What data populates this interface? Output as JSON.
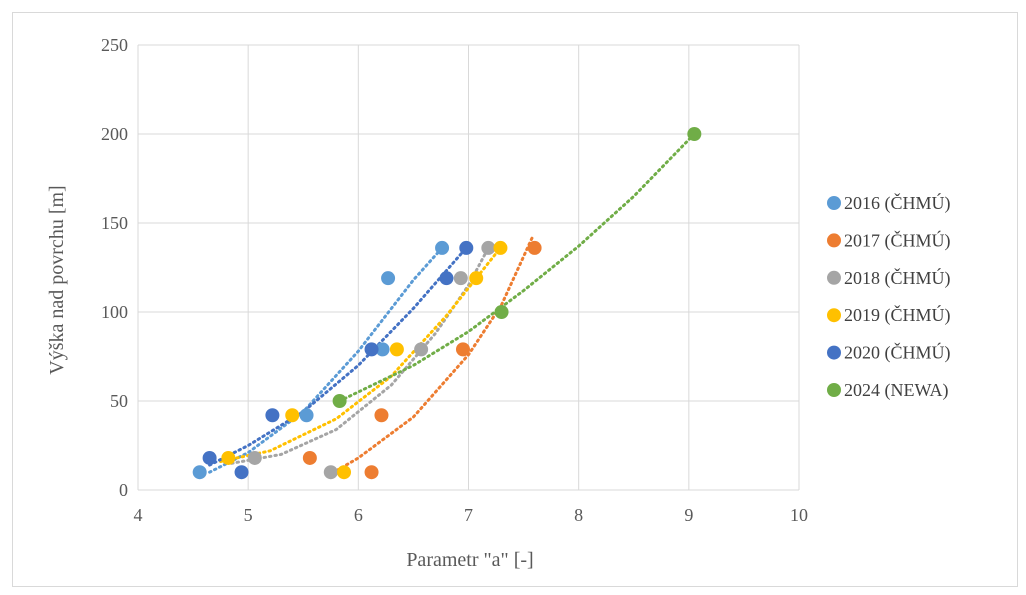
{
  "chart_data": {
    "type": "scatter",
    "xlabel": "Parametr \"a\" [-]",
    "ylabel": "Výška nad povrchu [m]",
    "xlim": [
      4,
      10
    ],
    "ylim": [
      0,
      250
    ],
    "xticks": [
      4,
      5,
      6,
      7,
      8,
      9,
      10
    ],
    "yticks": [
      0,
      50,
      100,
      150,
      200,
      250
    ],
    "grid": true,
    "legend_position": "right",
    "trendlines": "dotted polynomial",
    "series": [
      {
        "name": "2016 (ČHMÚ)",
        "color": "#5b9bd5",
        "points": [
          [
            4.56,
            10
          ],
          [
            5.53,
            42
          ],
          [
            6.22,
            79
          ],
          [
            6.27,
            119
          ],
          [
            6.76,
            136
          ]
        ],
        "trend": [
          [
            4.65,
            10
          ],
          [
            5.0,
            21
          ],
          [
            5.5,
            44
          ],
          [
            6.0,
            78
          ],
          [
            6.5,
            118
          ],
          [
            6.76,
            136
          ]
        ]
      },
      {
        "name": "2017 (ČHMÚ)",
        "color": "#ed7d31",
        "points": [
          [
            6.12,
            10
          ],
          [
            5.56,
            18
          ],
          [
            6.21,
            42
          ],
          [
            6.95,
            79
          ],
          [
            7.6,
            136
          ]
        ],
        "trend": [
          [
            5.72,
            8
          ],
          [
            6.0,
            18
          ],
          [
            6.5,
            41
          ],
          [
            7.0,
            76
          ],
          [
            7.3,
            104
          ],
          [
            7.58,
            142
          ]
        ]
      },
      {
        "name": "2018 (ČHMÚ)",
        "color": "#a5a5a5",
        "points": [
          [
            5.75,
            10
          ],
          [
            5.06,
            18
          ],
          [
            6.57,
            79
          ],
          [
            6.93,
            119
          ],
          [
            7.18,
            136
          ]
        ],
        "trend": [
          [
            4.85,
            15
          ],
          [
            5.3,
            20
          ],
          [
            5.8,
            34
          ],
          [
            6.3,
            59
          ],
          [
            6.7,
            88
          ],
          [
            7.0,
            115
          ],
          [
            7.18,
            136
          ]
        ]
      },
      {
        "name": "2019 (ČHMÚ)",
        "color": "#ffc000",
        "points": [
          [
            5.87,
            10
          ],
          [
            4.82,
            18
          ],
          [
            5.4,
            42
          ],
          [
            6.35,
            79
          ],
          [
            7.07,
            119
          ],
          [
            7.29,
            136
          ]
        ],
        "trend": [
          [
            4.75,
            16
          ],
          [
            5.2,
            22
          ],
          [
            5.8,
            40
          ],
          [
            6.3,
            64
          ],
          [
            6.8,
            98
          ],
          [
            7.29,
            136
          ]
        ]
      },
      {
        "name": "2020 (ČHMÚ)",
        "color": "#4472c4",
        "points": [
          [
            4.94,
            10
          ],
          [
            4.65,
            18
          ],
          [
            5.22,
            42
          ],
          [
            6.12,
            79
          ],
          [
            6.8,
            119
          ],
          [
            6.98,
            136
          ]
        ],
        "trend": [
          [
            4.65,
            14
          ],
          [
            5.0,
            25
          ],
          [
            5.5,
            44
          ],
          [
            6.0,
            70
          ],
          [
            6.5,
            102
          ],
          [
            6.98,
            136
          ]
        ]
      },
      {
        "name": "2024 (NEWA)",
        "color": "#70ad47",
        "points": [
          [
            5.83,
            50
          ],
          [
            7.3,
            100
          ],
          [
            9.05,
            200
          ]
        ],
        "trend": [
          [
            5.83,
            50
          ],
          [
            6.5,
            70
          ],
          [
            7.0,
            89
          ],
          [
            7.5,
            112
          ],
          [
            8.0,
            137
          ],
          [
            8.5,
            165
          ],
          [
            9.05,
            200
          ]
        ]
      }
    ]
  }
}
